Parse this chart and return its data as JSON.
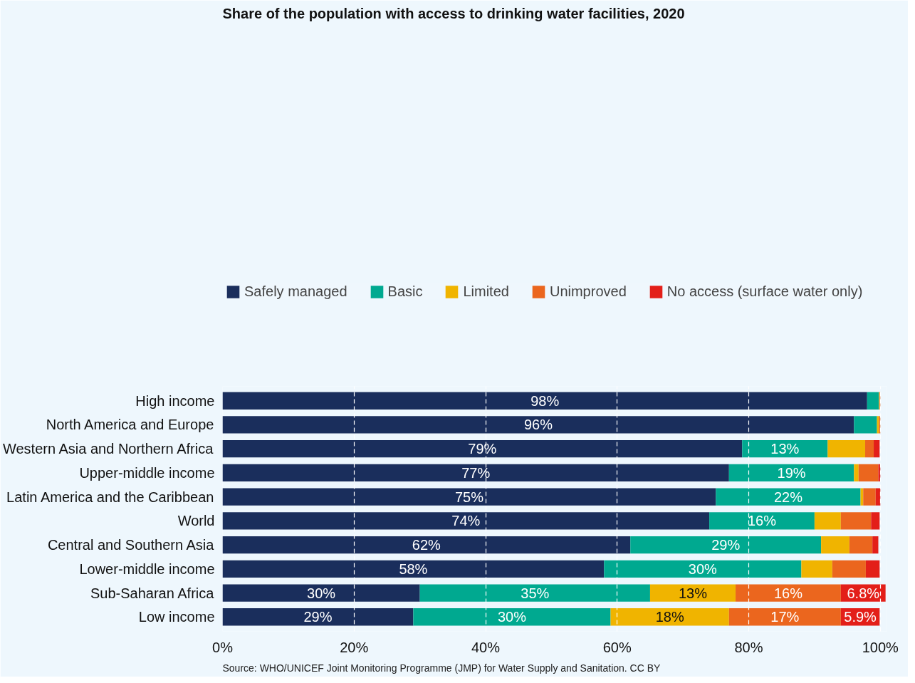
{
  "chart_data": {
    "type": "bar",
    "orientation": "horizontal",
    "stacked": true,
    "title": "Share of the population with access to drinking water facilities, 2020",
    "categories": [
      "High income",
      "North America and Europe",
      "Western Asia and Northern Africa",
      "Upper-middle income",
      "Latin America and the Caribbean",
      "World",
      "Central and Southern Asia",
      "Lower-middle income",
      "Sub-Saharan Africa",
      "Low income"
    ],
    "series": [
      {
        "name": "Safely managed",
        "color": "#1a2e5c",
        "values": [
          98,
          96,
          79,
          77,
          75,
          74,
          62,
          58,
          30,
          29
        ],
        "value_labels": [
          "98%",
          "96%",
          "79%",
          "77%",
          "75%",
          "74%",
          "62%",
          "58%",
          "30%",
          "29%"
        ]
      },
      {
        "name": "Basic",
        "color": "#00a990",
        "values": [
          1.8,
          3.5,
          13,
          19,
          22,
          16,
          29,
          30,
          35,
          30
        ],
        "value_labels": [
          null,
          null,
          "13%",
          "19%",
          "22%",
          "16%",
          "29%",
          "30%",
          "35%",
          "30%"
        ]
      },
      {
        "name": "Limited",
        "color": "#f0b400",
        "values": [
          0.1,
          0.3,
          5.7,
          0.7,
          0.4,
          4,
          4.3,
          4.7,
          13,
          18
        ],
        "value_labels": [
          null,
          null,
          null,
          null,
          null,
          null,
          null,
          null,
          "13%",
          "18%"
        ]
      },
      {
        "name": "Unimproved",
        "color": "#eb661e",
        "values": [
          0.1,
          0.2,
          1.3,
          3,
          1.9,
          4.6,
          3.5,
          5.1,
          16,
          17
        ],
        "value_labels": [
          null,
          null,
          null,
          null,
          null,
          null,
          null,
          null,
          "16%",
          "17%"
        ]
      },
      {
        "name": "No access (surface water only)",
        "color": "#e31f19",
        "values": [
          0,
          0,
          0.9,
          0.3,
          0.7,
          1.3,
          0.9,
          2.1,
          6.8,
          5.9
        ],
        "value_labels": [
          null,
          null,
          null,
          null,
          null,
          null,
          null,
          null,
          "6.8%",
          "5.9%"
        ]
      }
    ],
    "xlim": [
      0,
      101
    ],
    "xticks": [
      {
        "value": 0,
        "label": "0%"
      },
      {
        "value": 20,
        "label": "20%"
      },
      {
        "value": 40,
        "label": "40%"
      },
      {
        "value": 60,
        "label": "60%"
      },
      {
        "value": 80,
        "label": "80%"
      },
      {
        "value": 100,
        "label": "100%"
      }
    ],
    "grid": "x",
    "legend": "top left",
    "annotations": [
      "Source: WHO/UNICEF Joint Monitoring Programme (JMP) for Water Supply and Sanitation. CC BY"
    ]
  }
}
